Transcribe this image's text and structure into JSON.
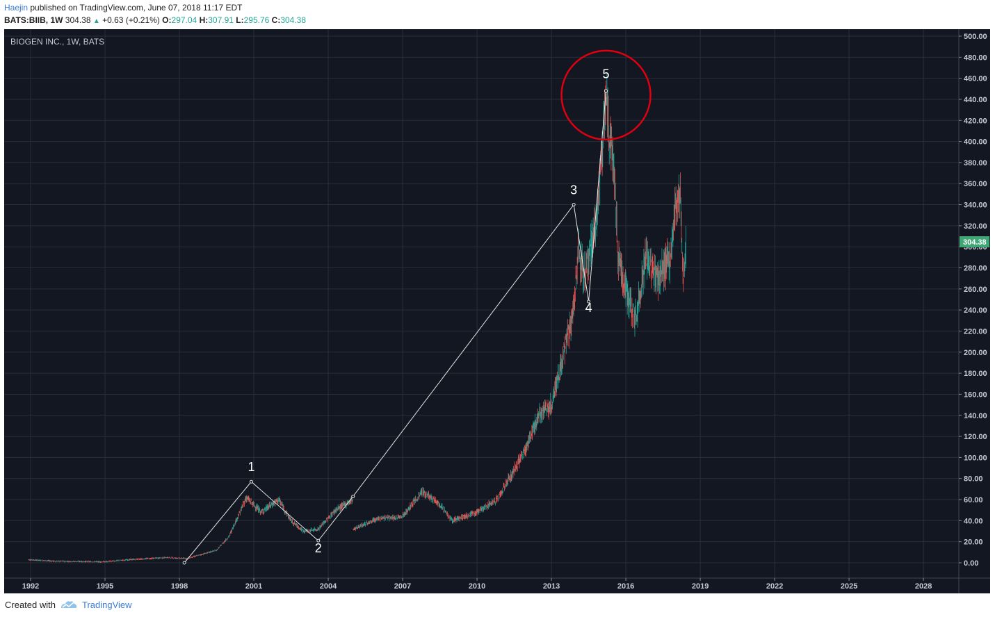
{
  "header": {
    "author": "Haejin",
    "published": " published on TradingView.com, June 07, 2018 11:17 EDT",
    "symbol": "BATS:BIIB, 1W",
    "last": "304.38",
    "change": "+0.63 (+0.21%)",
    "o_label": "O:",
    "o_value": "297.04",
    "h_label": "H:",
    "h_value": "307.91",
    "l_label": "L:",
    "l_value": "295.76",
    "c_label": "C:",
    "c_value": "304.38"
  },
  "legend": "BIOGEN INC., 1W, BATS",
  "price_tag": "304.38",
  "footer": {
    "created": "Created with",
    "brand": "TradingView"
  },
  "colors": {
    "background": "#131722",
    "grid": "#2a2e39",
    "up": "#26a69a",
    "down": "#ef5350",
    "circle": "#e0000f",
    "price_tag": "#3fa675"
  },
  "chart_data": {
    "type": "candlestick",
    "title": "BIOGEN INC., 1W, BATS",
    "ylim": [
      -10,
      505
    ],
    "yticks": [
      "500.00",
      "480.00",
      "460.00",
      "440.00",
      "420.00",
      "400.00",
      "380.00",
      "360.00",
      "340.00",
      "320.00",
      "300.00",
      "280.00",
      "260.00",
      "240.00",
      "220.00",
      "200.00",
      "180.00",
      "160.00",
      "140.00",
      "120.00",
      "100.00",
      "80.00",
      "60.00",
      "40.00",
      "20.00",
      "0.00"
    ],
    "xticks": [
      "1992",
      "1995",
      "1998",
      "2001",
      "2004",
      "2007",
      "2010",
      "2013",
      "2016",
      "2019",
      "2022",
      "2025",
      "2028"
    ],
    "price_path": [
      {
        "x": 1991.9,
        "y": 3
      },
      {
        "x": 1993.0,
        "y": 1.5
      },
      {
        "x": 1995.0,
        "y": 1
      },
      {
        "x": 1996.0,
        "y": 3
      },
      {
        "x": 1997.5,
        "y": 5
      },
      {
        "x": 1998.3,
        "y": 4
      },
      {
        "x": 1999.5,
        "y": 12
      },
      {
        "x": 2000.0,
        "y": 25
      },
      {
        "x": 2000.7,
        "y": 62
      },
      {
        "x": 2001.3,
        "y": 48
      },
      {
        "x": 2002.0,
        "y": 60
      },
      {
        "x": 2002.5,
        "y": 40
      },
      {
        "x": 2003.0,
        "y": 30
      },
      {
        "x": 2003.6,
        "y": 32
      },
      {
        "x": 2004.3,
        "y": 50
      },
      {
        "x": 2005.0,
        "y": 60
      }
    ],
    "price_path_2": [
      {
        "x": 2005.0,
        "y": 32
      },
      {
        "x": 2006.0,
        "y": 42
      },
      {
        "x": 2007.0,
        "y": 44
      },
      {
        "x": 2007.8,
        "y": 68
      },
      {
        "x": 2008.5,
        "y": 55
      },
      {
        "x": 2009.0,
        "y": 40
      },
      {
        "x": 2010.0,
        "y": 48
      },
      {
        "x": 2010.8,
        "y": 60
      },
      {
        "x": 2011.3,
        "y": 80
      },
      {
        "x": 2011.9,
        "y": 105
      },
      {
        "x": 2012.5,
        "y": 140
      },
      {
        "x": 2013.0,
        "y": 150
      },
      {
        "x": 2013.5,
        "y": 200
      },
      {
        "x": 2013.9,
        "y": 240
      },
      {
        "x": 2014.1,
        "y": 300
      },
      {
        "x": 2014.3,
        "y": 270
      },
      {
        "x": 2014.8,
        "y": 320
      },
      {
        "x": 2015.2,
        "y": 440
      },
      {
        "x": 2015.5,
        "y": 380
      },
      {
        "x": 2015.7,
        "y": 290
      },
      {
        "x": 2016.0,
        "y": 260
      },
      {
        "x": 2016.4,
        "y": 230
      },
      {
        "x": 2016.8,
        "y": 290
      },
      {
        "x": 2017.3,
        "y": 270
      },
      {
        "x": 2017.8,
        "y": 290
      },
      {
        "x": 2018.0,
        "y": 340
      },
      {
        "x": 2018.2,
        "y": 350
      },
      {
        "x": 2018.3,
        "y": 270
      },
      {
        "x": 2018.44,
        "y": 304
      }
    ],
    "wave_line": [
      {
        "x": 1998.2,
        "y": 0
      },
      {
        "x": 2000.9,
        "y": 77
      },
      {
        "x": 2003.6,
        "y": 21
      },
      {
        "x": 2005.0,
        "y": 63
      },
      {
        "x": 2013.9,
        "y": 340
      },
      {
        "x": 2014.5,
        "y": 248
      },
      {
        "x": 2015.2,
        "y": 448
      }
    ],
    "wave_labels": [
      {
        "label": "1",
        "x": 2000.9,
        "y": 87
      },
      {
        "label": "2",
        "x": 2003.6,
        "y": 10
      },
      {
        "label": "3",
        "x": 2013.9,
        "y": 350
      },
      {
        "label": "4",
        "x": 2014.5,
        "y": 238
      },
      {
        "label": "5",
        "x": 2015.2,
        "y": 460
      }
    ],
    "highlight_circle": {
      "x": 2015.2,
      "y": 444
    }
  }
}
